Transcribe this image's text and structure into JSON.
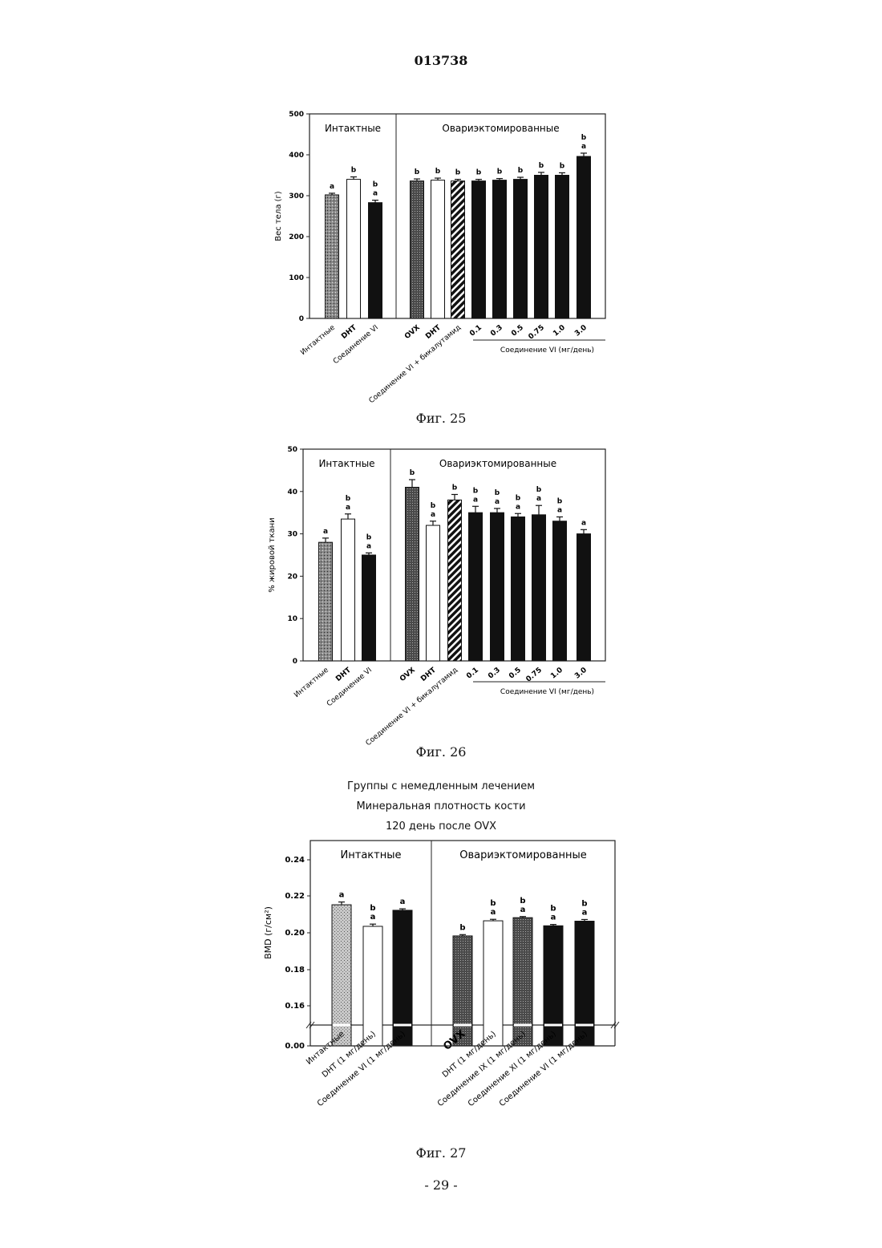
{
  "page_number": "013738",
  "footer": "- 29 -",
  "captions": {
    "fig25": "Фиг. 25",
    "fig26": "Фиг. 26",
    "fig27": "Фиг. 27"
  },
  "fig27_titles": [
    "Группы с немедленным лечением",
    "Минеральная плотность кости",
    "120 день после OVX"
  ],
  "chart_data": [
    {
      "type": "bar",
      "ylabel": "Вес тела (г)",
      "ylim": [
        0,
        500
      ],
      "yticks": [
        "0",
        "100",
        "200",
        "300",
        "400",
        "500"
      ],
      "groups": [
        "Интактные",
        "Овариэктомированные"
      ],
      "categories": [
        "Интактные",
        "DHT",
        "Соединение VI",
        "OVX",
        "DHT",
        "Соединение VI + бикалутамид",
        "0.1",
        "0.3",
        "0.5",
        "0.75",
        "1.0",
        "3.0"
      ],
      "values": [
        302,
        340,
        283,
        336,
        338,
        336,
        336,
        338,
        340,
        350,
        350,
        396
      ],
      "errors": [
        4,
        6,
        6,
        5,
        5,
        4,
        4,
        4,
        5,
        7,
        6,
        8
      ],
      "annotations": [
        "a",
        "b",
        "b\na",
        "b",
        "b",
        "b",
        "b",
        "b",
        "b",
        "b",
        "b",
        "b\na"
      ],
      "fills": [
        "stipple",
        "white",
        "black",
        "darkstipple",
        "white",
        "hatch",
        "black",
        "black",
        "black",
        "black",
        "black",
        "black"
      ],
      "dose_label": "Соединение VI (мг/день)"
    },
    {
      "type": "bar",
      "ylabel": "% жировой ткани",
      "ylim": [
        0,
        50
      ],
      "yticks": [
        "0",
        "10",
        "20",
        "30",
        "40",
        "50"
      ],
      "groups": [
        "Интактные",
        "Овариэктомированные"
      ],
      "categories": [
        "Интактные",
        "DHT",
        "Соединение VI",
        "OVX",
        "DHT",
        "Соединение VI + бикалутамид",
        "0.1",
        "0.3",
        "0.5",
        "0.75",
        "1.0",
        "3.0"
      ],
      "values": [
        28,
        33.5,
        25,
        41,
        32,
        38,
        35,
        35,
        34,
        34.5,
        33,
        30
      ],
      "errors": [
        1,
        1.2,
        0.5,
        1.8,
        1,
        1.3,
        1.5,
        1,
        0.8,
        2.2,
        1,
        1
      ],
      "annotations": [
        "a",
        "b\na",
        "b\na",
        "b",
        "b\na",
        "b",
        "b\na",
        "b\na",
        "b\na",
        "b\na",
        "b\na",
        "a"
      ],
      "fills": [
        "stipple",
        "white",
        "black",
        "darkstipple",
        "white",
        "hatch",
        "black",
        "black",
        "black",
        "black",
        "black",
        "black"
      ],
      "dose_label": "Соединение VI (мг/день)"
    },
    {
      "type": "bar",
      "ylabel": "BMD (г/см²)",
      "ylim": [
        0.15,
        0.25
      ],
      "axis_break": true,
      "yticks": [
        "0.00",
        "0.16",
        "0.18",
        "0.20",
        "0.22",
        "0.24"
      ],
      "groups": [
        "Интактные",
        "Овариэктомированные"
      ],
      "categories": [
        "Интактные",
        "DHT (1 мг/день)",
        "Соединение VI (1 мг/день)",
        "OVX",
        "DHT (1 мг/день)",
        "Соединение IX (1 мг/день)",
        "Соединение XI (1 мг/день)",
        "Соединение VI (1 мг/день)"
      ],
      "values": [
        0.2152,
        0.2035,
        0.2122,
        0.1983,
        0.2065,
        0.2082,
        0.2038,
        0.2063
      ],
      "errors": [
        0.0015,
        0.0012,
        0.0008,
        0.0007,
        0.0008,
        0.0006,
        0.0007,
        0.0009
      ],
      "annotations": [
        "a",
        "b\na",
        "a",
        "b",
        "b\na",
        "b\na",
        "b\na",
        "b\na"
      ],
      "fills": [
        "lightstipple",
        "white",
        "black",
        "darkstipple",
        "white",
        "darkstipple",
        "black",
        "black"
      ]
    }
  ]
}
